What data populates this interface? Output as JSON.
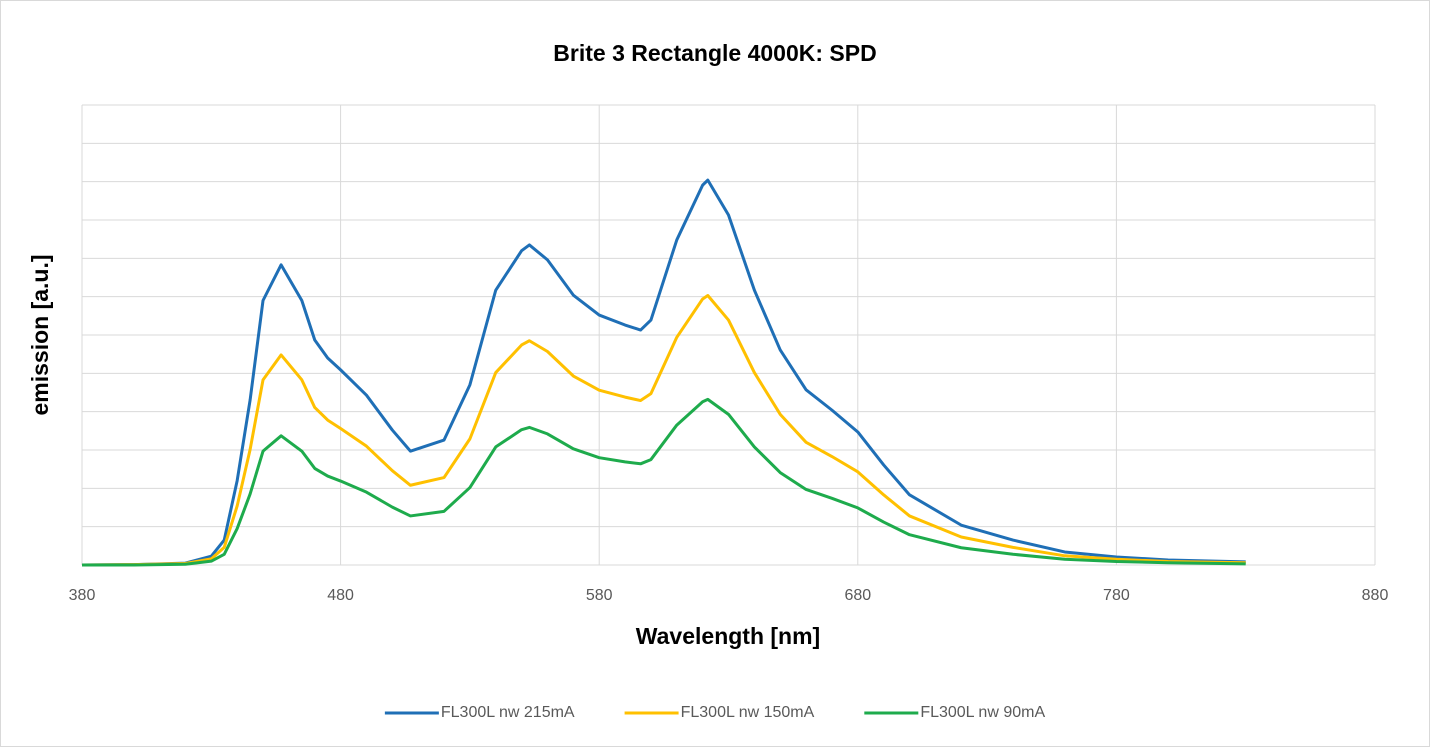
{
  "chart_data": {
    "type": "line",
    "title": "Brite 3 Rectangle 4000K: SPD",
    "x_label": "Wavelength [nm]",
    "y_label": "emission [a.u.]",
    "x": [
      380,
      400,
      420,
      430,
      435,
      440,
      445,
      450,
      457,
      465,
      470,
      475,
      480,
      490,
      500,
      507,
      520,
      530,
      540,
      550,
      553,
      560,
      570,
      580,
      590,
      596,
      600,
      610,
      620,
      622,
      630,
      640,
      650,
      660,
      670,
      680,
      690,
      700,
      720,
      740,
      760,
      780,
      800,
      830
    ],
    "series": [
      {
        "name": "FL300L nw 215mA",
        "color": "#1f6fb6",
        "values": [
          0,
          0.01,
          0.05,
          0.23,
          0.65,
          2.2,
          4.3,
          6.9,
          7.83,
          6.9,
          5.87,
          5.4,
          5.09,
          4.43,
          3.52,
          2.97,
          3.26,
          4.7,
          7.17,
          8.2,
          8.35,
          7.96,
          7.04,
          6.52,
          6.26,
          6.13,
          6.39,
          8.48,
          9.91,
          10.04,
          9.13,
          7.17,
          5.61,
          4.57,
          4.04,
          3.47,
          2.61,
          1.83,
          1.04,
          0.65,
          0.34,
          0.21,
          0.13,
          0.08
        ]
      },
      {
        "name": "FL300L nw 150mA",
        "color": "#ffc000",
        "values": [
          0,
          0.01,
          0.04,
          0.16,
          0.46,
          1.54,
          3.01,
          4.83,
          5.48,
          4.83,
          4.11,
          3.78,
          3.56,
          3.1,
          2.46,
          2.08,
          2.28,
          3.29,
          5.02,
          5.74,
          5.85,
          5.57,
          4.93,
          4.56,
          4.38,
          4.29,
          4.47,
          5.94,
          6.94,
          7.03,
          6.39,
          5.02,
          3.93,
          3.2,
          2.83,
          2.43,
          1.83,
          1.28,
          0.73,
          0.46,
          0.24,
          0.15,
          0.09,
          0.06
        ]
      },
      {
        "name": "FL300L nw 90mA",
        "color": "#1eab4c",
        "values": [
          0,
          0,
          0.02,
          0.1,
          0.28,
          0.95,
          1.85,
          2.97,
          3.37,
          2.97,
          2.52,
          2.32,
          2.19,
          1.9,
          1.51,
          1.28,
          1.4,
          2.02,
          3.08,
          3.53,
          3.59,
          3.42,
          3.03,
          2.8,
          2.69,
          2.64,
          2.75,
          3.65,
          4.26,
          4.32,
          3.93,
          3.08,
          2.41,
          1.97,
          1.74,
          1.49,
          1.12,
          0.79,
          0.45,
          0.28,
          0.15,
          0.09,
          0.06,
          0.03
        ]
      }
    ],
    "xlim": [
      380,
      880
    ],
    "xticks": [
      380,
      480,
      580,
      680,
      780,
      880
    ],
    "ylim": [
      0,
      12
    ],
    "yticks": [
      0,
      1,
      2,
      3,
      4,
      5,
      6,
      7,
      8,
      9,
      10,
      11,
      12
    ],
    "grid": true,
    "legend": "bottom"
  }
}
